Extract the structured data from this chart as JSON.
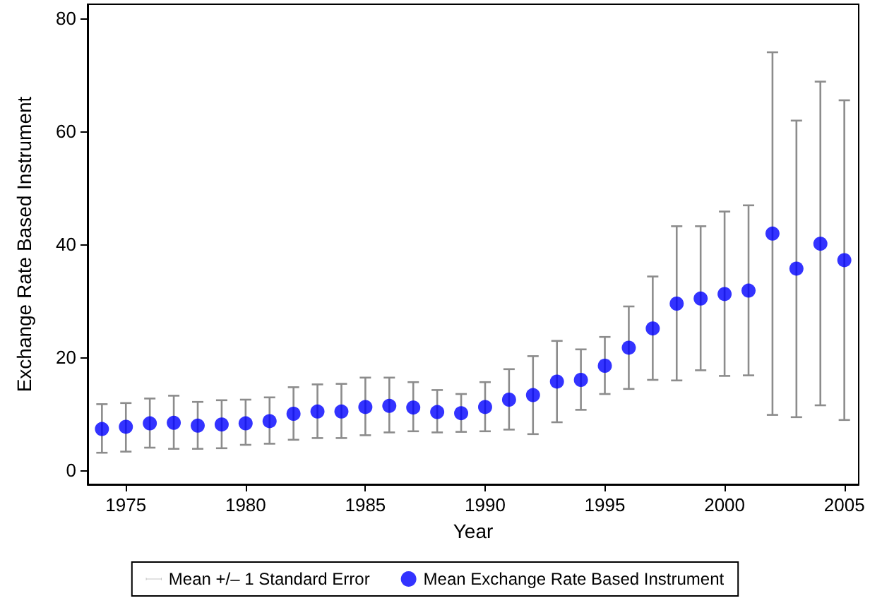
{
  "chart_data": {
    "type": "scatter",
    "xlabel": "Year",
    "ylabel": "Exchange Rate Based Instrument",
    "x": [
      1974,
      1975,
      1976,
      1977,
      1978,
      1979,
      1980,
      1981,
      1982,
      1983,
      1984,
      1985,
      1986,
      1987,
      1988,
      1989,
      1990,
      1991,
      1992,
      1993,
      1994,
      1995,
      1996,
      1997,
      1998,
      1999,
      2000,
      2001,
      2002,
      2003,
      2004,
      2005
    ],
    "series": [
      {
        "name": "Mean Exchange Rate Based Instrument",
        "color": "#0000ff",
        "values": [
          7.3,
          7.7,
          8.3,
          8.4,
          7.9,
          8.1,
          8.3,
          8.7,
          10.0,
          10.4,
          10.4,
          11.2,
          11.4,
          11.1,
          10.3,
          10.1,
          11.2,
          12.5,
          13.3,
          15.7,
          16.0,
          18.5,
          21.7,
          25.1,
          29.5,
          30.4,
          31.2,
          31.8,
          41.9,
          35.7,
          40.1,
          37.2
        ],
        "errors": [
          [
            3.1,
            11.7
          ],
          [
            3.3,
            11.9
          ],
          [
            4.0,
            12.7
          ],
          [
            3.8,
            13.2
          ],
          [
            3.8,
            12.1
          ],
          [
            3.9,
            12.4
          ],
          [
            4.5,
            12.5
          ],
          [
            4.7,
            12.9
          ],
          [
            5.4,
            14.7
          ],
          [
            5.7,
            15.2
          ],
          [
            5.7,
            15.3
          ],
          [
            6.2,
            16.4
          ],
          [
            6.7,
            16.4
          ],
          [
            6.9,
            15.6
          ],
          [
            6.7,
            14.2
          ],
          [
            6.8,
            13.5
          ],
          [
            6.9,
            15.6
          ],
          [
            7.2,
            17.9
          ],
          [
            6.4,
            20.2
          ],
          [
            8.5,
            22.9
          ],
          [
            10.7,
            21.4
          ],
          [
            13.5,
            23.6
          ],
          [
            14.4,
            29.0
          ],
          [
            16.0,
            34.3
          ],
          [
            15.9,
            43.2
          ],
          [
            17.7,
            43.2
          ],
          [
            16.7,
            45.8
          ],
          [
            16.8,
            46.9
          ],
          [
            9.8,
            74.0
          ],
          [
            9.4,
            61.9
          ],
          [
            11.5,
            68.8
          ],
          [
            8.9,
            65.5
          ]
        ]
      }
    ],
    "annotations": [
      "Mean +/– 1 Standard Error"
    ],
    "xlim": [
      1973.4,
      2005.6
    ],
    "xticks": [
      1975,
      1980,
      1985,
      1990,
      1995,
      2000,
      2005
    ],
    "ylim": [
      -2.5,
      82.5
    ],
    "yticks": [
      0,
      20,
      40,
      60,
      80
    ],
    "grid": false,
    "legend": "bottom",
    "marker": "circle"
  }
}
